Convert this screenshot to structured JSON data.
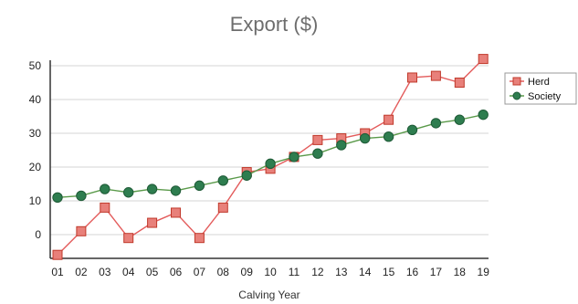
{
  "chart_data": {
    "type": "line",
    "title": "Export ($)",
    "xlabel": "Calving Year",
    "ylabel": "",
    "categories": [
      "01",
      "02",
      "03",
      "04",
      "05",
      "06",
      "07",
      "08",
      "09",
      "10",
      "11",
      "12",
      "13",
      "14",
      "15",
      "16",
      "17",
      "18",
      "19"
    ],
    "yticks": [
      0,
      10,
      20,
      30,
      40,
      50
    ],
    "ylim": [
      -6,
      53
    ],
    "grid": true,
    "legend_position": "right",
    "series": [
      {
        "name": "Herd",
        "marker": "square",
        "color": "#e35b5b",
        "line_color": "#e35b5b",
        "values": [
          -6,
          1,
          8,
          -1,
          3.5,
          6.5,
          -1,
          8,
          18.5,
          19.5,
          23,
          28,
          28.5,
          30,
          34,
          46.5,
          47,
          45,
          52
        ]
      },
      {
        "name": "Society",
        "marker": "circle",
        "color": "#2e7d4f",
        "line_color": "#5a9a4a",
        "values": [
          11,
          11.5,
          13.5,
          12.5,
          13.5,
          13,
          14.5,
          16,
          17.5,
          21,
          23,
          24,
          26.5,
          28.5,
          29,
          31,
          33,
          34,
          35.5
        ]
      }
    ]
  }
}
